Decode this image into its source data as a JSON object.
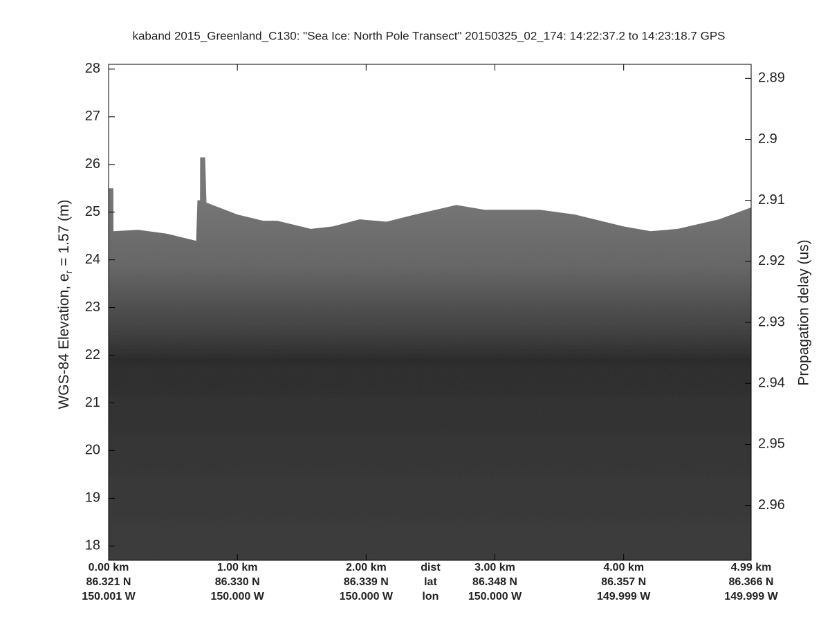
{
  "chart_data": {
    "type": "echogram",
    "title": "kaband 2015_Greenland_C130: \"Sea Ice: North Pole Transect\"  20150325_02_174: 14:22:37.2 to 14:23:18.7 GPS",
    "ylabel": {
      "main": "WGS-84 Elevation, e",
      "subscript": "r",
      "rest": "= 1.57 (m)"
    },
    "y2label": "Propagation delay (us)",
    "x": [
      0,
      0.037,
      0.038,
      0.23,
      0.45,
      0.68,
      0.69,
      0.71,
      0.711,
      0.75,
      0.76,
      1.0,
      1.2,
      1.31,
      1.57,
      1.74,
      1.95,
      2.16,
      2.38,
      2.7,
      2.92,
      3.35,
      3.62,
      4.0,
      4.21,
      4.42,
      4.74,
      4.99
    ],
    "values": [
      25.5,
      25.5,
      24.6,
      24.63,
      24.55,
      24.4,
      25.25,
      25.25,
      26.15,
      26.15,
      25.2,
      24.95,
      24.82,
      24.82,
      24.65,
      24.7,
      24.85,
      24.8,
      24.95,
      25.15,
      25.05,
      25.05,
      24.95,
      24.7,
      24.6,
      24.65,
      24.85,
      25.1
    ],
    "xlim": [
      0,
      4.99
    ],
    "xticks": [
      {
        "value": 0,
        "label": "0.00 km"
      },
      {
        "value": 1,
        "label": "1.00 km"
      },
      {
        "value": 2,
        "label": "2.00 km"
      },
      {
        "value": 3,
        "label": "3.00 km"
      },
      {
        "value": 4,
        "label": "4.00 km"
      },
      {
        "value": 4.99,
        "label": "4.99 km"
      }
    ],
    "lat_labels": [
      "86.321 N",
      "86.330 N",
      "86.339 N",
      "86.348 N",
      "86.357 N",
      "86.366 N"
    ],
    "lon_labels": [
      "150.001 W",
      "150.000 W",
      "150.000 W",
      "150.000 W",
      "149.999 W",
      "149.999 W"
    ],
    "row_names": [
      "dist",
      "lat",
      "lon"
    ],
    "ylim": [
      17.7,
      28.1
    ],
    "yticks": [
      18,
      19,
      20,
      21,
      22,
      23,
      24,
      25,
      26,
      27,
      28
    ],
    "y2lim": [
      2.969,
      2.8877
    ],
    "y2ticks": [
      2.89,
      2.9,
      2.91,
      2.92,
      2.93,
      2.94,
      2.95,
      2.96
    ],
    "colormap": "gray"
  }
}
